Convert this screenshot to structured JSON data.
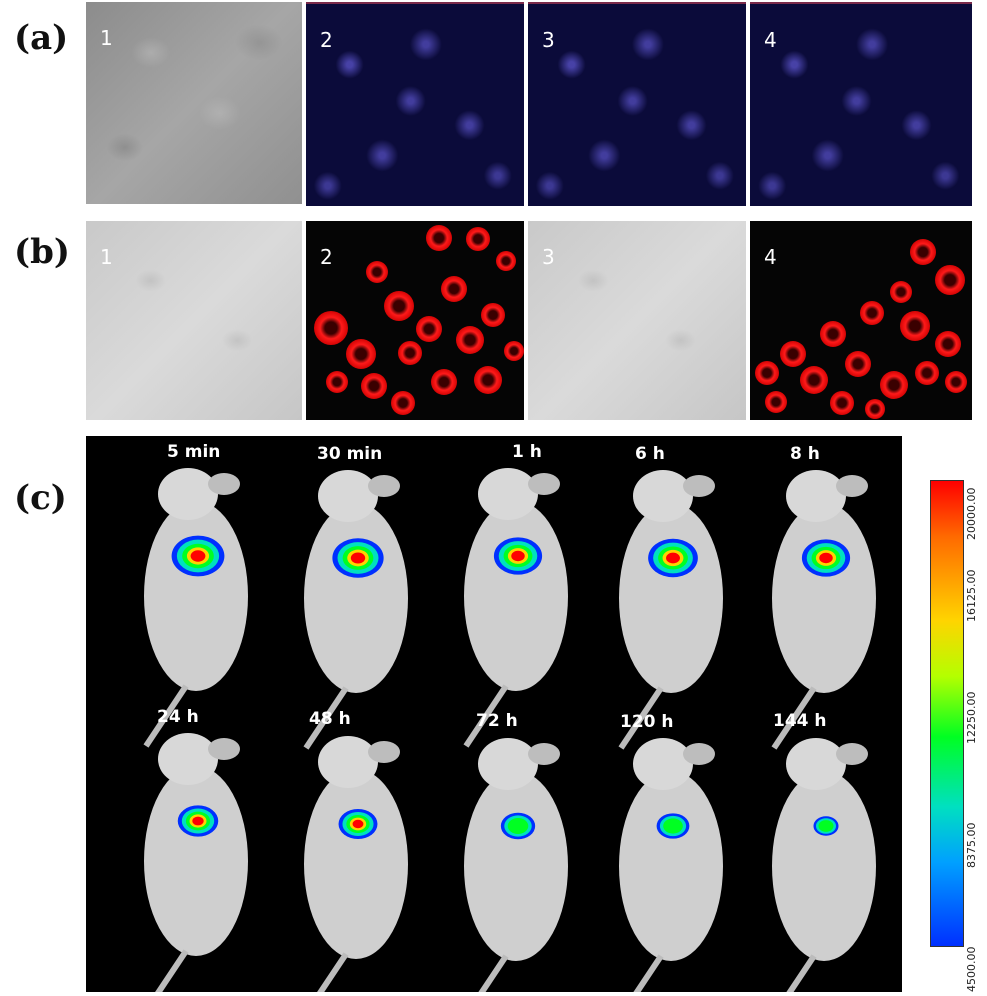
{
  "panels": {
    "a": {
      "label": "(a)",
      "images": [
        "1",
        "2",
        "3",
        "4"
      ]
    },
    "b": {
      "label": "(b)",
      "images": [
        "1",
        "2",
        "3",
        "4"
      ]
    },
    "c": {
      "label": "(c)",
      "top_row": [
        "5 min",
        "30 min",
        "1 h",
        "6 h",
        "8 h"
      ],
      "bottom_row": [
        "24 h",
        "48 h",
        "72 h",
        "120 h",
        "144 h"
      ],
      "colorbar": {
        "ticks": [
          "20000.00",
          "16125.00",
          "12250.00",
          "8375.00",
          "4500.00"
        ],
        "colors": [
          "#ff0000",
          "#ffd400",
          "#00ff22",
          "#00a0ff",
          "#0030ff"
        ]
      }
    }
  }
}
